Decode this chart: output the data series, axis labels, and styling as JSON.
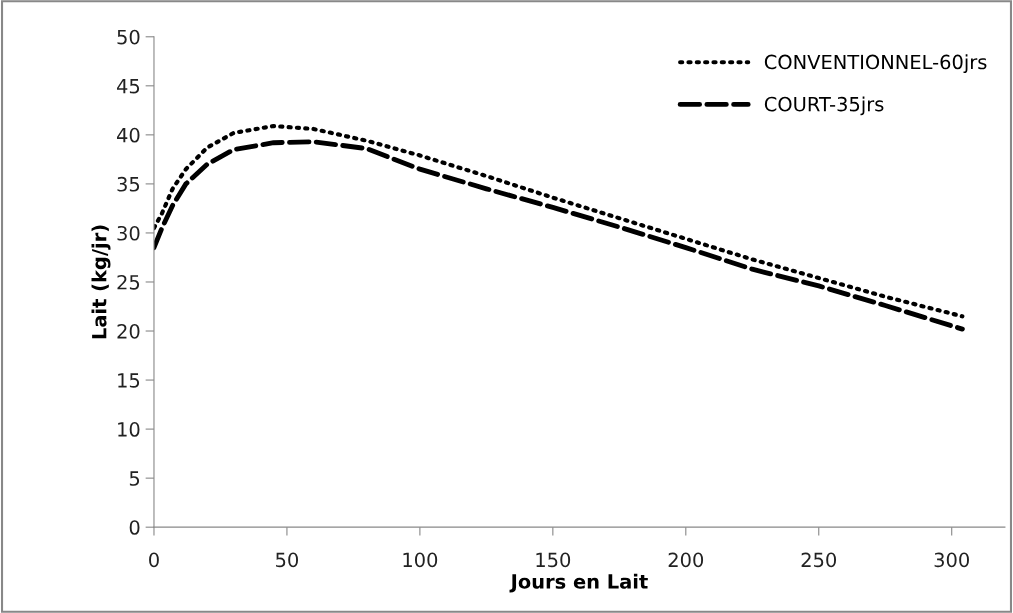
{
  "chart_data": {
    "type": "line",
    "xlabel": "Jours en Lait",
    "ylabel": "Lait (kg/jr)",
    "x": [
      0,
      3,
      7,
      12,
      20,
      30,
      45,
      60,
      80,
      100,
      125,
      150,
      175,
      200,
      225,
      250,
      275,
      304
    ],
    "series": [
      {
        "name": "CONVENTIONNEL-60jrs",
        "color": "#000000",
        "line_style": "dotted",
        "values": [
          30.5,
          32,
          34.5,
          36.5,
          38.7,
          40.2,
          40.9,
          40.6,
          39.4,
          37.9,
          35.8,
          33.6,
          31.5,
          29.4,
          27.3,
          25.4,
          23.5,
          21.5
        ]
      },
      {
        "name": "COURT-35jrs",
        "color": "#000000",
        "line_style": "dashed",
        "values": [
          28.5,
          30.5,
          32.8,
          35,
          37,
          38.5,
          39.2,
          39.3,
          38.6,
          36.5,
          34.5,
          32.6,
          30.6,
          28.5,
          26.3,
          24.6,
          22.6,
          20.2
        ]
      }
    ],
    "xlim": [
      0,
      320
    ],
    "xticks": [
      0,
      50,
      100,
      150,
      200,
      250,
      300
    ],
    "ylim": [
      0,
      50
    ],
    "yticks": [
      0,
      5,
      10,
      15,
      20,
      25,
      30,
      35,
      40,
      45,
      50
    ],
    "grid": false,
    "legend": "top right",
    "marker": "none"
  }
}
